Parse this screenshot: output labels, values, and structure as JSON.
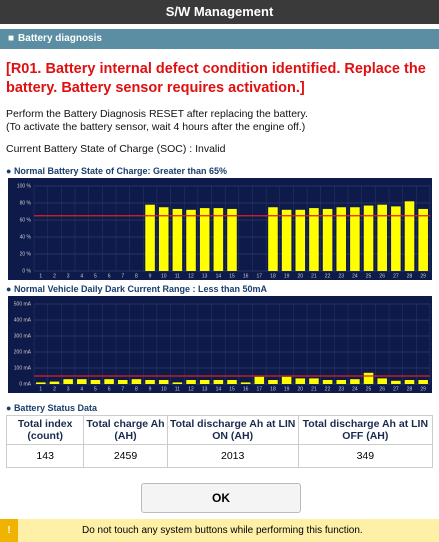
{
  "header": {
    "title": "S/W Management"
  },
  "section": {
    "title": "Battery diagnosis"
  },
  "alert": "[R01. Battery internal defect condition identified. Replace the battery.  Battery sensor requires activation.]",
  "notes": [
    "Perform the Battery Diagnosis RESET after replacing the battery.",
    "(To activate the battery sensor, wait 4 hours after the engine off.)"
  ],
  "soc": "Current Battery State of Charge (SOC) : Invalid",
  "chart_data": [
    {
      "type": "bar",
      "title": "Normal Battery State of Charge: Greater than 65%",
      "color": "#ffff00",
      "threshold": 65,
      "threshold_color": "#e02020",
      "categories": [
        "1",
        "2",
        "3",
        "4",
        "5",
        "6",
        "7",
        "8",
        "9",
        "10",
        "11",
        "12",
        "13",
        "14",
        "15",
        "16",
        "17",
        "18",
        "19",
        "20",
        "21",
        "22",
        "23",
        "24",
        "25",
        "26",
        "27",
        "28",
        "29"
      ],
      "values": [
        0,
        0,
        0,
        0,
        0,
        0,
        0,
        0,
        78,
        75,
        73,
        72,
        74,
        74,
        73,
        0,
        0,
        75,
        72,
        72,
        74,
        73,
        75,
        75,
        77,
        78,
        76,
        82,
        73
      ],
      "ylim": [
        0,
        100
      ],
      "yticks": [
        {
          "value": 0,
          "label": "0 %"
        },
        {
          "value": 20,
          "label": "20 %"
        },
        {
          "value": 40,
          "label": "40 %"
        },
        {
          "value": 60,
          "label": "60 %"
        },
        {
          "value": 80,
          "label": "80 %"
        },
        {
          "value": 100,
          "label": "100 %"
        }
      ],
      "grid": true
    },
    {
      "type": "bar",
      "title": "Normal Vehicle Daily Dark Current Range : Less than 50mA",
      "color": "#ffff00",
      "threshold": 50,
      "threshold_color": "#e02020",
      "categories": [
        "1",
        "2",
        "3",
        "4",
        "5",
        "6",
        "7",
        "8",
        "9",
        "10",
        "11",
        "12",
        "13",
        "14",
        "15",
        "16",
        "17",
        "18",
        "19",
        "20",
        "21",
        "22",
        "23",
        "24",
        "25",
        "26",
        "27",
        "28",
        "29"
      ],
      "values": [
        10,
        15,
        30,
        30,
        25,
        30,
        25,
        30,
        25,
        25,
        10,
        25,
        25,
        25,
        25,
        10,
        45,
        25,
        45,
        35,
        35,
        25,
        25,
        30,
        70,
        35,
        20,
        25,
        25
      ],
      "ylim": [
        0,
        500
      ],
      "yticks": [
        {
          "value": 0,
          "label": "0 mA"
        },
        {
          "value": 100,
          "label": "100 mA"
        },
        {
          "value": 200,
          "label": "200 mA"
        },
        {
          "value": 300,
          "label": "300 mA"
        },
        {
          "value": 400,
          "label": "400 mA"
        },
        {
          "value": 500,
          "label": "500 mA"
        }
      ],
      "grid": true
    }
  ],
  "status": {
    "title": "Battery Status Data"
  },
  "table": {
    "headers": [
      "Total index (count)",
      "Total charge Ah (AH)",
      "Total discharge Ah at LIN ON (AH)",
      "Total discharge Ah at LIN OFF (AH)"
    ],
    "rows": [
      [
        "143",
        "2459",
        "2013",
        "349"
      ]
    ]
  },
  "button": "OK",
  "warning": {
    "icon": "!",
    "text": "Do not touch any system buttons while performing this function."
  }
}
